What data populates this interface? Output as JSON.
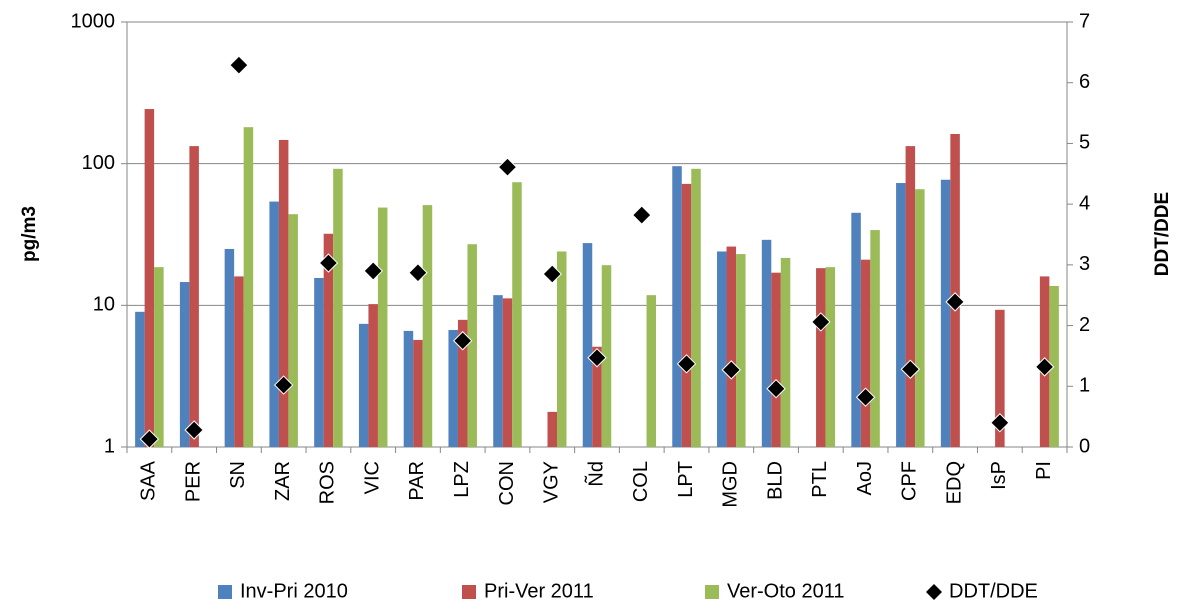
{
  "chart_data": {
    "type": "bar",
    "ylabel": "pg/m3",
    "y2label": "DDT/DDE",
    "categories": [
      "SAA",
      "PER",
      "SN",
      "ZAR",
      "ROS",
      "VIC",
      "PAR",
      "LPZ",
      "CON",
      "VGY",
      "Ñd",
      "COL",
      "LPT",
      "MGD",
      "BLD",
      "PTL",
      "AoJ",
      "CPF",
      "EDQ",
      "IsP",
      "PI"
    ],
    "series": [
      {
        "name": "Inv-Pri 2010",
        "color": "#4f81bd",
        "values": [
          9.0,
          14.6,
          25,
          54,
          15.6,
          7.4,
          6.6,
          6.7,
          11.8,
          null,
          27.5,
          null,
          96,
          24,
          29,
          null,
          45,
          73,
          77,
          null,
          null
        ]
      },
      {
        "name": "Pri-Ver 2011",
        "color": "#c0504d",
        "values": [
          243,
          133,
          16,
          147,
          32,
          10.2,
          5.7,
          7.9,
          11.2,
          1.77,
          5.1,
          null,
          72,
          26,
          17,
          18.3,
          21,
          133,
          162,
          9.3,
          16
        ]
      },
      {
        "name": "Ver-Oto 2011",
        "color": "#9bbb59",
        "values": [
          18.6,
          null,
          181,
          44,
          92,
          49,
          51,
          27,
          74,
          24,
          19.2,
          11.8,
          92,
          23,
          21.6,
          18.6,
          34,
          66,
          null,
          null,
          13.7
        ]
      },
      {
        "name": "DDT/DDE",
        "color": "#000000",
        "type": "scatter",
        "marker": "diamond",
        "axis": "y2",
        "values": [
          0.13,
          0.28,
          6.29,
          1.02,
          3.03,
          2.9,
          2.87,
          1.75,
          4.61,
          2.85,
          1.47,
          3.82,
          1.37,
          1.27,
          0.96,
          2.06,
          0.82,
          1.28,
          2.39,
          0.4,
          1.32
        ]
      }
    ],
    "ylog": true,
    "ylim": [
      1,
      1000
    ],
    "yticks": [
      1,
      10,
      100,
      1000
    ],
    "y2lim": [
      0,
      7
    ],
    "y2ticks": [
      0,
      1,
      2,
      3,
      4,
      5,
      6,
      7
    ],
    "grid": true,
    "legend": "bottom"
  }
}
